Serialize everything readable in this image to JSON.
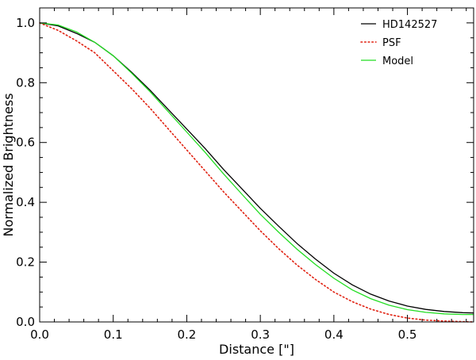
{
  "chart_data": {
    "type": "line",
    "title": "",
    "xlabel": "Distance [\"]",
    "ylabel": "Normalized Brightness",
    "xlim": [
      0,
      0.59
    ],
    "ylim": [
      0,
      1.05
    ],
    "x_ticks": [
      0.0,
      0.1,
      0.2,
      0.3,
      0.4,
      0.5
    ],
    "x_tick_labels": [
      "0.0",
      "0.1",
      "0.2",
      "0.3",
      "0.4",
      "0.5"
    ],
    "y_ticks": [
      0.0,
      0.2,
      0.4,
      0.6,
      0.8,
      1.0
    ],
    "y_tick_labels": [
      "0.0",
      "0.2",
      "0.4",
      "0.6",
      "0.8",
      "1.0"
    ],
    "grid": false,
    "legend_position": "top-right",
    "series": [
      {
        "name": "HD142527",
        "color": "#000000",
        "style": "solid",
        "x": [
          0.0,
          0.025,
          0.05,
          0.075,
          0.1,
          0.125,
          0.15,
          0.175,
          0.2,
          0.225,
          0.25,
          0.275,
          0.3,
          0.325,
          0.35,
          0.375,
          0.4,
          0.425,
          0.45,
          0.475,
          0.5,
          0.525,
          0.55,
          0.575,
          0.59
        ],
        "y": [
          1.0,
          0.99,
          0.965,
          0.935,
          0.89,
          0.835,
          0.775,
          0.71,
          0.645,
          0.58,
          0.51,
          0.445,
          0.38,
          0.32,
          0.262,
          0.21,
          0.163,
          0.124,
          0.093,
          0.07,
          0.053,
          0.042,
          0.035,
          0.031,
          0.03
        ]
      },
      {
        "name": "PSF",
        "color": "#e02010",
        "style": "dotted",
        "x": [
          0.0,
          0.025,
          0.05,
          0.075,
          0.1,
          0.125,
          0.15,
          0.175,
          0.2,
          0.225,
          0.25,
          0.275,
          0.3,
          0.325,
          0.35,
          0.375,
          0.4,
          0.425,
          0.45,
          0.475,
          0.5,
          0.525,
          0.55,
          0.575,
          0.59
        ],
        "y": [
          1.0,
          0.975,
          0.94,
          0.9,
          0.84,
          0.78,
          0.715,
          0.645,
          0.575,
          0.505,
          0.435,
          0.37,
          0.305,
          0.245,
          0.19,
          0.142,
          0.1,
          0.068,
          0.043,
          0.025,
          0.013,
          0.006,
          0.003,
          0.001,
          0.0
        ]
      },
      {
        "name": "Model",
        "color": "#22dd22",
        "style": "solid",
        "x": [
          0.0,
          0.025,
          0.05,
          0.075,
          0.1,
          0.125,
          0.15,
          0.175,
          0.2,
          0.225,
          0.25,
          0.275,
          0.3,
          0.325,
          0.35,
          0.375,
          0.4,
          0.425,
          0.45,
          0.475,
          0.5,
          0.525,
          0.55,
          0.575,
          0.59
        ],
        "y": [
          1.0,
          0.993,
          0.97,
          0.935,
          0.89,
          0.832,
          0.77,
          0.703,
          0.635,
          0.567,
          0.495,
          0.427,
          0.36,
          0.3,
          0.243,
          0.192,
          0.146,
          0.107,
          0.078,
          0.056,
          0.041,
          0.032,
          0.027,
          0.025,
          0.025
        ]
      }
    ]
  }
}
